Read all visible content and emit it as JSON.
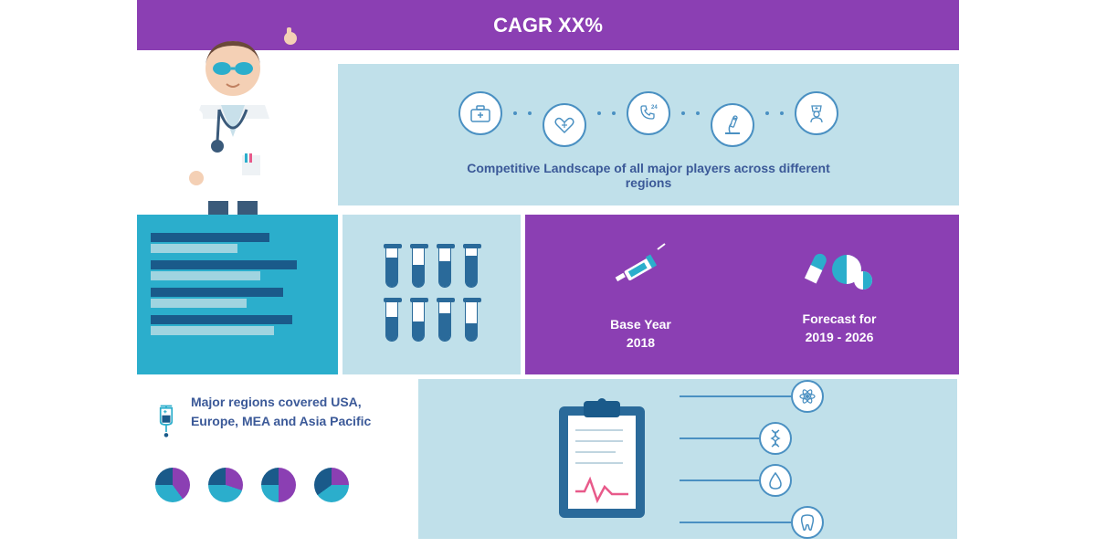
{
  "header": {
    "title": "CAGR XX%",
    "background": "#8b3fb3",
    "text_color": "#ffffff",
    "fontsize": 22
  },
  "icons_band": {
    "background": "#c0e0ea",
    "icons": [
      "medkit-icon",
      "heart-icon",
      "phone24-icon",
      "microscope-icon",
      "nurse-icon"
    ],
    "icon_border": "#4a90c2",
    "caption": "Competitive Landscape of all major players across different regions",
    "caption_color": "#3b5998",
    "caption_fontsize": 14
  },
  "bars": {
    "background": "#2baecc",
    "pairs": [
      {
        "dark_width": 130,
        "light_width": 95
      },
      {
        "dark_width": 160,
        "light_width": 120
      },
      {
        "dark_width": 145,
        "light_width": 105
      },
      {
        "dark_width": 155,
        "light_width": 135
      }
    ],
    "color_dark": "#1a5a8a",
    "color_light": "#a0d4e0"
  },
  "tubes": {
    "background": "#c0e0ea",
    "fills": [
      0.75,
      0.55,
      0.65,
      0.8,
      0.6,
      0.5,
      0.7,
      0.45
    ],
    "fill_color": "#2a6a9a"
  },
  "purple_box": {
    "background": "#8b3fb3",
    "text_color": "#ffffff",
    "base_year": {
      "label": "Base Year",
      "value": "2018"
    },
    "forecast": {
      "label": "Forecast for",
      "value": "2019 - 2026"
    }
  },
  "regions": {
    "text": "Major regions covered  USA, Europe, MEA and Asia Pacific",
    "text_color": "#3b5998",
    "pies": [
      {
        "slices": [
          {
            "color": "#8b3fb3",
            "pct": 40
          },
          {
            "color": "#2baecc",
            "pct": 35
          },
          {
            "color": "#1a5a8a",
            "pct": 25
          }
        ]
      },
      {
        "slices": [
          {
            "color": "#8b3fb3",
            "pct": 30
          },
          {
            "color": "#2baecc",
            "pct": 45
          },
          {
            "color": "#1a5a8a",
            "pct": 25
          }
        ]
      },
      {
        "slices": [
          {
            "color": "#8b3fb3",
            "pct": 50
          },
          {
            "color": "#2baecc",
            "pct": 25
          },
          {
            "color": "#1a5a8a",
            "pct": 25
          }
        ]
      },
      {
        "slices": [
          {
            "color": "#8b3fb3",
            "pct": 25
          },
          {
            "color": "#2baecc",
            "pct": 40
          },
          {
            "color": "#1a5a8a",
            "pct": 35
          }
        ]
      }
    ]
  },
  "clipboard_band": {
    "background": "#c0e0ea",
    "branches": [
      "atom-icon",
      "dna-icon",
      "drop-icon",
      "tooth-icon"
    ],
    "branch_color": "#4a90c2"
  },
  "doctor": {
    "coat_color": "#ffffff",
    "skin_color": "#f4d0b5",
    "hair_color": "#6b4a3a",
    "pants_color": "#3a5a7a",
    "glasses_color": "#2baecc",
    "stethoscope_color": "#3a5a7a"
  }
}
